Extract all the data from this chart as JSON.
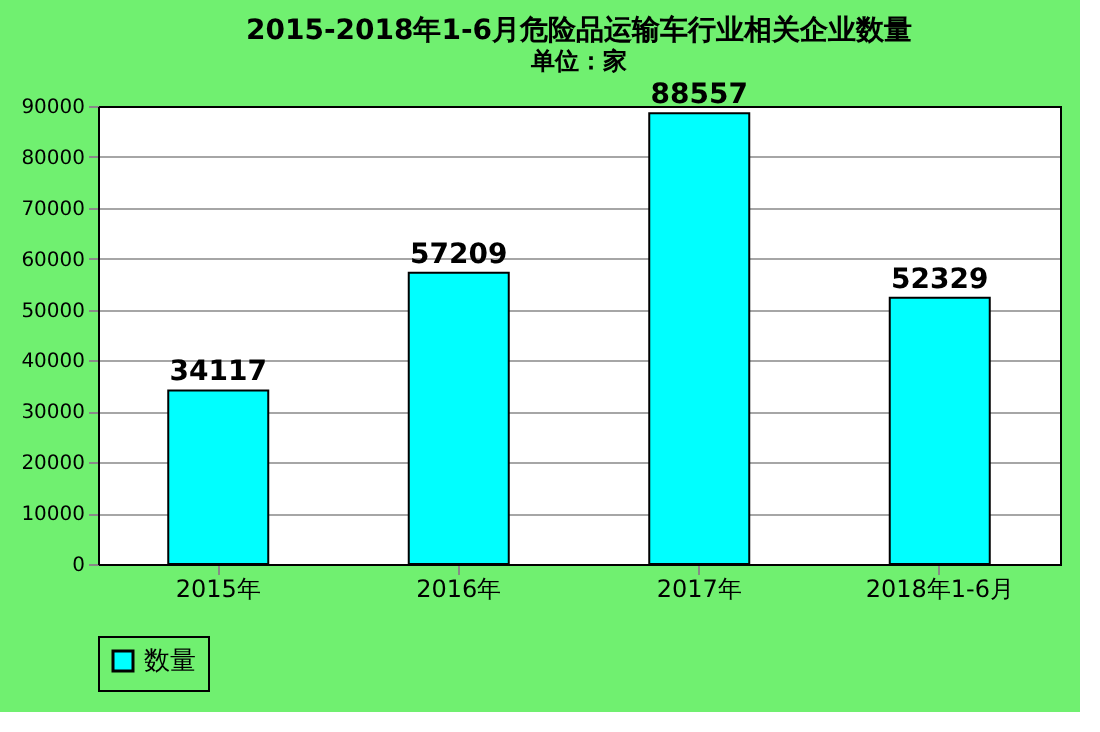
{
  "chart_data": {
    "type": "bar",
    "title": "2015-2018年1-6月危险品运输车行业相关企业数量",
    "ylabel": "单位：家",
    "categories": [
      "2015年",
      "2016年",
      "2017年",
      "2018年1-6月"
    ],
    "series": [
      {
        "name": "数量",
        "color": "#00ffff",
        "values": [
          34117,
          57209,
          88557,
          52329
        ]
      }
    ],
    "ylim": [
      0,
      90000
    ],
    "yticks": [
      0,
      10000,
      20000,
      30000,
      40000,
      50000,
      60000,
      70000,
      80000,
      90000
    ],
    "grid": "y",
    "legend": "bottom",
    "data_labels": true
  }
}
